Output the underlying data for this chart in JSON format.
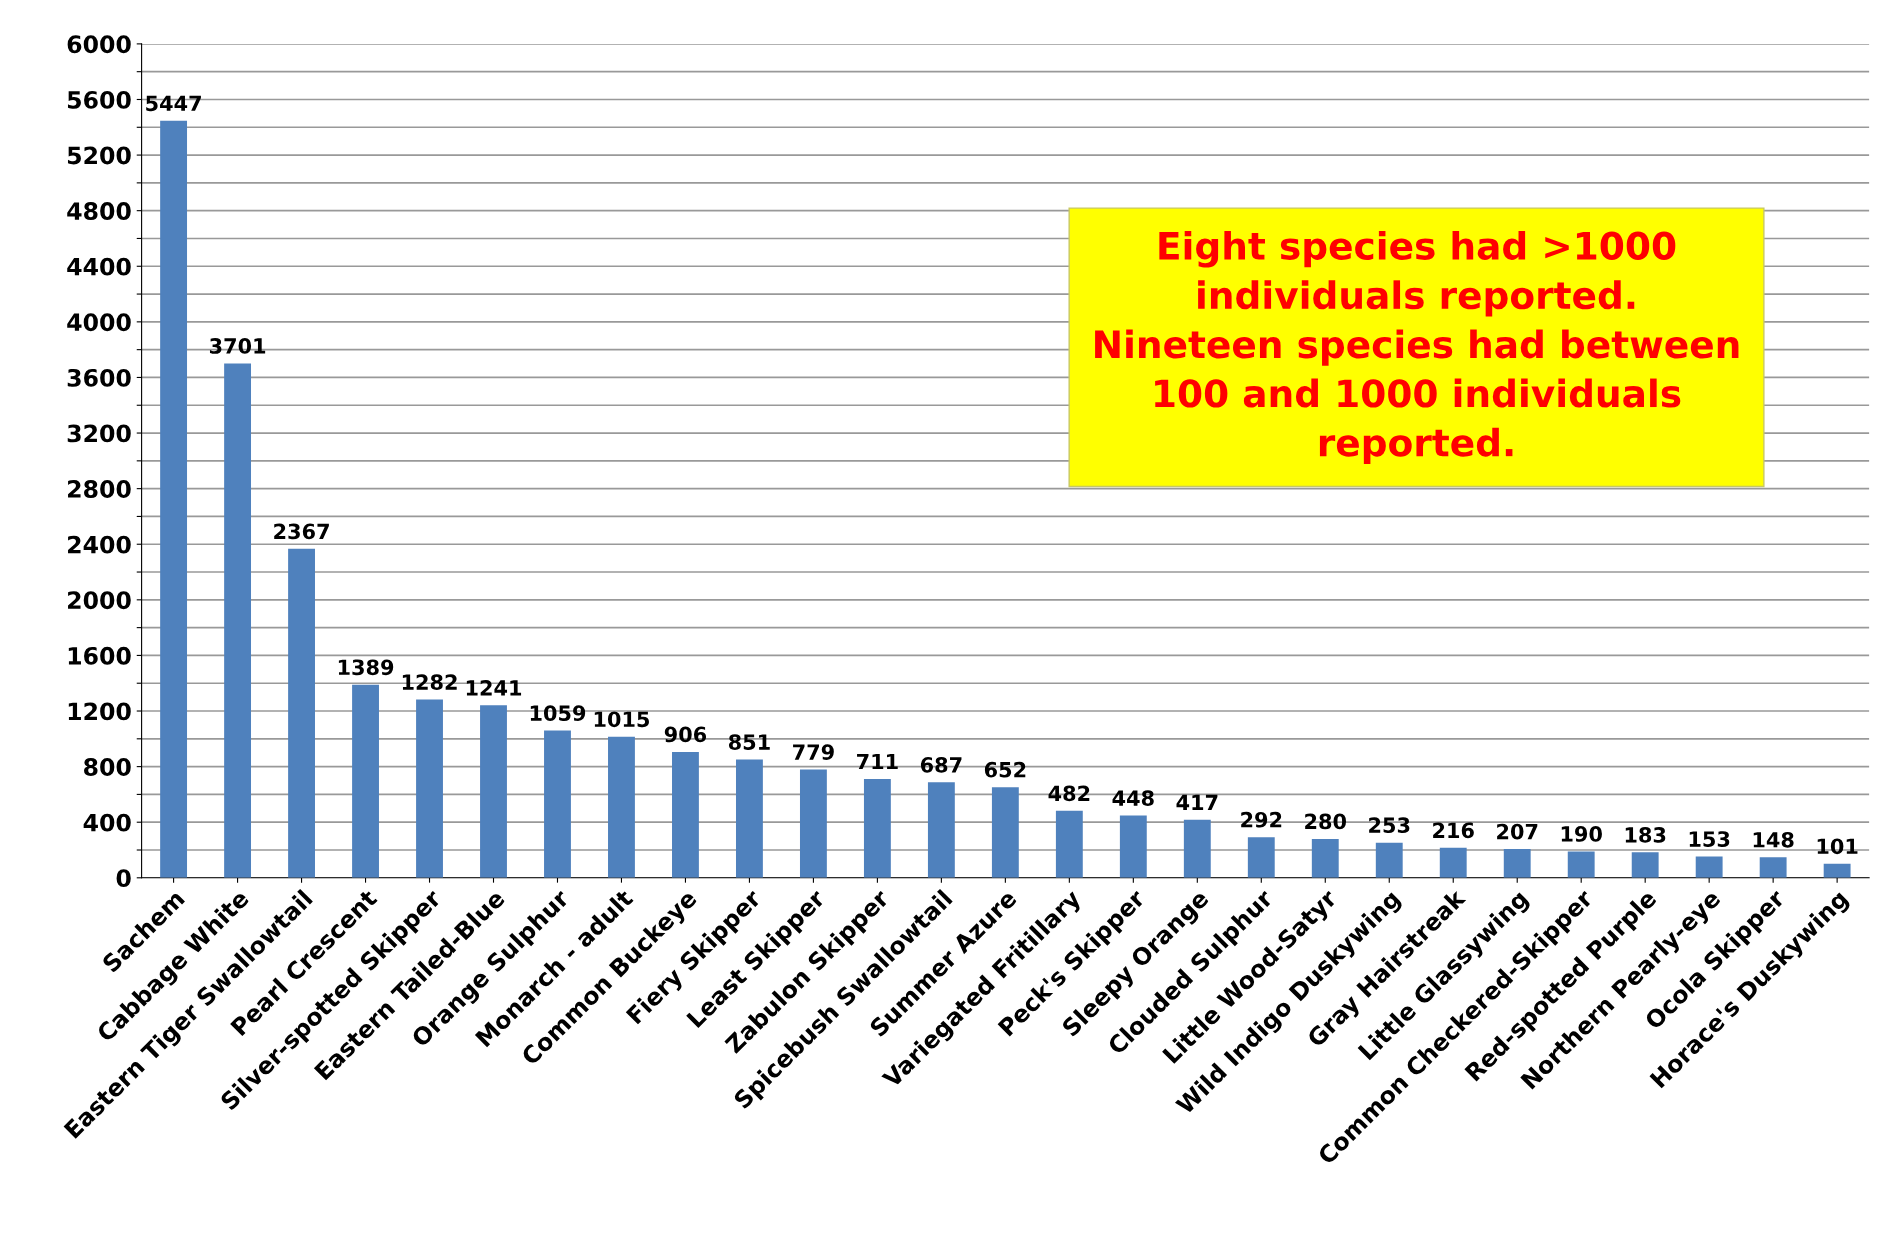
{
  "chart_data": {
    "type": "bar",
    "categories": [
      "Sachem",
      "Cabbage White",
      "Eastern Tiger Swallowtail",
      "Pearl Crescent",
      "Silver-spotted Skipper",
      "Eastern Tailed-Blue",
      "Orange Sulphur",
      "Monarch - adult",
      "Common Buckeye",
      "Fiery Skipper",
      "Least Skipper",
      "Zabulon Skipper",
      "Spicebush Swallowtail",
      "Summer Azure",
      "Variegated Fritillary",
      "Peck's Skipper",
      "Sleepy Orange",
      "Clouded Sulphur",
      "Little Wood-Satyr",
      "Wild Indigo Duskywing",
      "Gray Hairstreak",
      "Little Glassywing",
      "Common Checkered-Skipper",
      "Red-spotted Purple",
      "Northern Pearly-eye",
      "Ocola Skipper",
      "Horace's Duskywing"
    ],
    "values": [
      5447,
      3701,
      2367,
      1389,
      1282,
      1241,
      1059,
      1015,
      906,
      851,
      779,
      711,
      687,
      652,
      482,
      448,
      417,
      292,
      280,
      253,
      216,
      207,
      190,
      183,
      153,
      148,
      101
    ],
    "color": "#4f81bd",
    "ylim": [
      0,
      6000
    ],
    "yticks": [
      0,
      {
        "value": 200,
        "label": null
      },
      400,
      {
        "value": 600,
        "label": null
      },
      800,
      {
        "value": 1000,
        "label": null
      },
      1200,
      {
        "value": 1400,
        "label": null
      },
      1600,
      {
        "value": 1800,
        "label": null
      },
      2000,
      {
        "value": 2200,
        "label": null
      },
      2400,
      {
        "value": 2600,
        "label": null
      },
      2800,
      {
        "value": 3000,
        "label": null
      },
      3200,
      {
        "value": 3400,
        "label": null
      },
      3600,
      {
        "value": 3800,
        "label": null
      },
      4000,
      {
        "value": 4200,
        "label": null
      },
      4400,
      {
        "value": 4600,
        "label": null
      },
      4800,
      {
        "value": 5000,
        "label": null
      },
      5200,
      {
        "value": 5400,
        "label": null
      },
      5600,
      {
        "value": 5800,
        "label": null
      },
      6000
    ],
    "grid": "y",
    "data_labels": true,
    "annotations": [
      "Eight species had >1000\nindividuals reported.\nNineteen species had between\n100 and 1000 individuals\nreported."
    ]
  }
}
